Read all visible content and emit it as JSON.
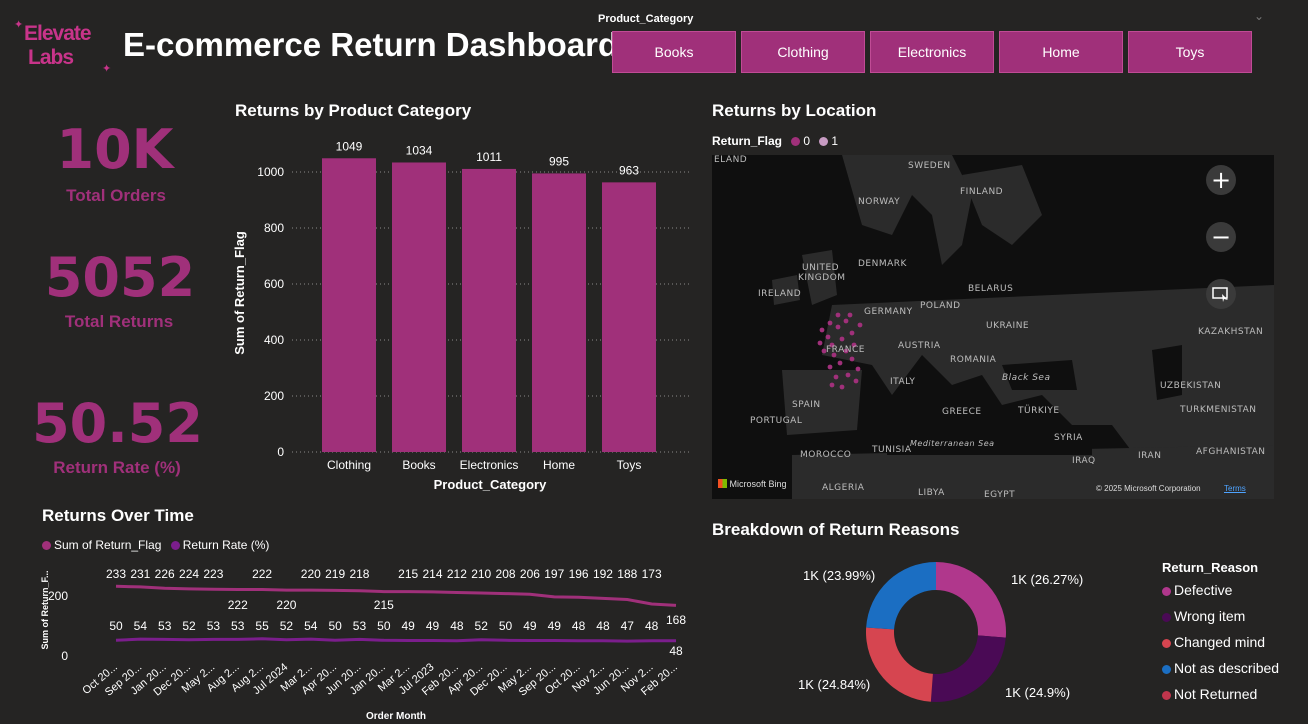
{
  "header": {
    "logo_line1": "Elevate",
    "logo_line2": "Labs",
    "title": "E-commerce Return Dashboard"
  },
  "slicer": {
    "label": "Product_Category",
    "options": [
      "Books",
      "Clothing",
      "Electronics",
      "Home",
      "Toys"
    ]
  },
  "kpis": [
    {
      "value": "10K",
      "label": "Total Orders"
    },
    {
      "value": "5052",
      "label": "Total Returns"
    },
    {
      "value": "50.52",
      "label": "Return Rate (%)"
    }
  ],
  "colors": {
    "accent": "#a0307a",
    "background": "#252423",
    "line_rate": "#7b1e8c",
    "map_dot": "#a0307a"
  },
  "bar_chart": {
    "title": "Returns by Product Category",
    "xlabel": "Product_Category",
    "ylabel": "Sum of Return_Flag"
  },
  "map_visual": {
    "title": "Returns by Location",
    "legend_title": "Return_Flag",
    "legend_items": [
      "0",
      "1"
    ],
    "attribution": "Microsoft Bing",
    "copyright": "© 2025 Microsoft Corporation",
    "terms": "Terms",
    "countries": [
      "ELAND",
      "SWEDEN",
      "FINLAND",
      "NORWAY",
      "DENMARK",
      "UNITED",
      "KINGDOM",
      "IRELAND",
      "BELARUS",
      "POLAND",
      "GERMANY",
      "UKRAINE",
      "FRANCE",
      "AUSTRIA",
      "ROMANIA",
      "ITALY",
      "Black Sea",
      "KAZAKHSTAN",
      "SPAIN",
      "PORTUGAL",
      "GREECE",
      "TÜRKIYE",
      "UZBEKISTAN",
      "TURKMENISTAN",
      "Mediterranean Sea",
      "SYRIA",
      "IRAQ",
      "IRAN",
      "AFGHANISTAN",
      "MOROCCO",
      "TUNISIA",
      "ALGERIA",
      "LIBYA",
      "EGYPT"
    ],
    "icons": [
      "zoom-in-icon",
      "zoom-out-icon",
      "select-area-icon"
    ]
  },
  "line_visual": {
    "title": "Returns Over Time",
    "legend": [
      "Sum of Return_Flag",
      "Return Rate (%)"
    ],
    "ylabel": "Sum of Return_F...",
    "xlabel": "Order Month",
    "y_ticks": [
      "200",
      "0"
    ]
  },
  "donut_visual": {
    "title": "Breakdown of Return Reasons",
    "legend_title": "Return_Reason",
    "legend": [
      {
        "name": "Defective",
        "color": "#b0378c"
      },
      {
        "name": "Wrong item",
        "color": "#4a0a55"
      },
      {
        "name": "Changed mind",
        "color": "#d64550"
      },
      {
        "name": "Not as described",
        "color": "#1b6ec2"
      },
      {
        "name": "Not Returned",
        "color": "#c0354c"
      }
    ],
    "slice_labels": [
      "1K (26.27%)",
      "1K (24.9%)",
      "1K (24.84%)",
      "1K (23.99%)"
    ]
  },
  "chart_data": [
    {
      "type": "bar",
      "title": "Returns by Product Category",
      "categories": [
        "Clothing",
        "Books",
        "Electronics",
        "Home",
        "Toys"
      ],
      "values": [
        1049,
        1034,
        1011,
        995,
        963
      ],
      "xlabel": "Product_Category",
      "ylabel": "Sum of Return_Flag",
      "ylim": [
        0,
        1000
      ],
      "y_ticks": [
        0,
        200,
        400,
        600,
        800,
        1000
      ],
      "grid": true
    },
    {
      "type": "line",
      "title": "Returns Over Time",
      "x": [
        "Oct 20...",
        "Sep 20...",
        "Jan 20...",
        "Dec 20...",
        "May 2...",
        "Aug 2...",
        "Aug 2...",
        "Jul 2024",
        "Mar 2...",
        "Apr 20...",
        "Jun 20...",
        "Jan 20...",
        "Mar 2...",
        "Jul 2023",
        "Feb 20...",
        "Apr 20...",
        "Dec 20...",
        "May 2...",
        "Sep 20...",
        "Oct 20...",
        "Nov 2...",
        "Jun 20...",
        "Nov 2...",
        "Feb 20..."
      ],
      "series": [
        {
          "name": "Sum of Return_Flag",
          "values": [
            233,
            231,
            226,
            224,
            223,
            222,
            222,
            220,
            220,
            219,
            218,
            215,
            215,
            214,
            212,
            210,
            208,
            206,
            197,
            196,
            192,
            188,
            173,
            168
          ]
        },
        {
          "name": "Return Rate (%)",
          "values": [
            50,
            54,
            53,
            52,
            53,
            53,
            55,
            52,
            54,
            50,
            53,
            50,
            49,
            49,
            48,
            52,
            50,
            49,
            49,
            48,
            48,
            47,
            48,
            48
          ]
        }
      ],
      "xlabel": "Order Month",
      "ylabel": "Sum of Return_F...",
      "y_ticks": [
        0,
        200
      ]
    },
    {
      "type": "pie",
      "title": "Breakdown of Return Reasons",
      "labels": [
        "Defective",
        "Wrong item",
        "Changed mind",
        "Not as described"
      ],
      "values": [
        26.27,
        24.9,
        24.84,
        23.99
      ],
      "colors": [
        "#b0378c",
        "#4a0a55",
        "#d64550",
        "#1b6ec2"
      ],
      "donut": true
    }
  ]
}
